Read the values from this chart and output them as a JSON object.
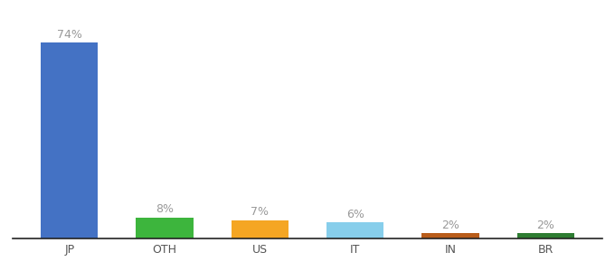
{
  "categories": [
    "JP",
    "OTH",
    "US",
    "IT",
    "IN",
    "BR"
  ],
  "values": [
    74,
    8,
    7,
    6,
    2,
    2
  ],
  "labels": [
    "74%",
    "8%",
    "7%",
    "6%",
    "2%",
    "2%"
  ],
  "bar_colors": [
    "#4472c4",
    "#3db53d",
    "#f5a623",
    "#87ceeb",
    "#b85c1a",
    "#2e7d32"
  ],
  "background_color": "#ffffff",
  "ylim": [
    0,
    82
  ],
  "label_fontsize": 9,
  "tick_fontsize": 9,
  "label_color": "#999999",
  "tick_color": "#555555"
}
